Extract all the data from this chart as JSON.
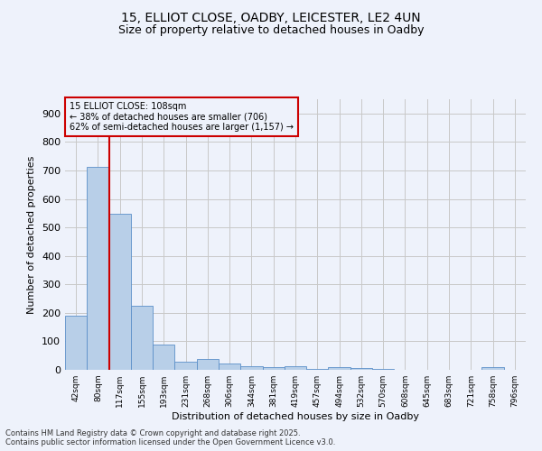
{
  "title_line1": "15, ELLIOT CLOSE, OADBY, LEICESTER, LE2 4UN",
  "title_line2": "Size of property relative to detached houses in Oadby",
  "xlabel": "Distribution of detached houses by size in Oadby",
  "ylabel": "Number of detached properties",
  "bar_labels": [
    "42sqm",
    "80sqm",
    "117sqm",
    "155sqm",
    "193sqm",
    "231sqm",
    "268sqm",
    "306sqm",
    "344sqm",
    "381sqm",
    "419sqm",
    "457sqm",
    "494sqm",
    "532sqm",
    "570sqm",
    "608sqm",
    "645sqm",
    "683sqm",
    "721sqm",
    "758sqm",
    "796sqm"
  ],
  "bar_values": [
    190,
    713,
    547,
    224,
    90,
    27,
    37,
    22,
    12,
    11,
    12,
    3,
    9,
    7,
    3,
    0,
    0,
    0,
    0,
    8,
    0
  ],
  "bar_color": "#b8cfe8",
  "bar_edge_color": "#5b8fc9",
  "annotation_box_text": "15 ELLIOT CLOSE: 108sqm\n← 38% of detached houses are smaller (706)\n62% of semi-detached houses are larger (1,157) →",
  "vline_x_index": 1.5,
  "vline_color": "#cc0000",
  "annotation_box_color": "#cc0000",
  "ylim": [
    0,
    950
  ],
  "yticks": [
    0,
    100,
    200,
    300,
    400,
    500,
    600,
    700,
    800,
    900
  ],
  "background_color": "#eef2fb",
  "grid_color": "#c8c8c8",
  "footer_line1": "Contains HM Land Registry data © Crown copyright and database right 2025.",
  "footer_line2": "Contains public sector information licensed under the Open Government Licence v3.0."
}
